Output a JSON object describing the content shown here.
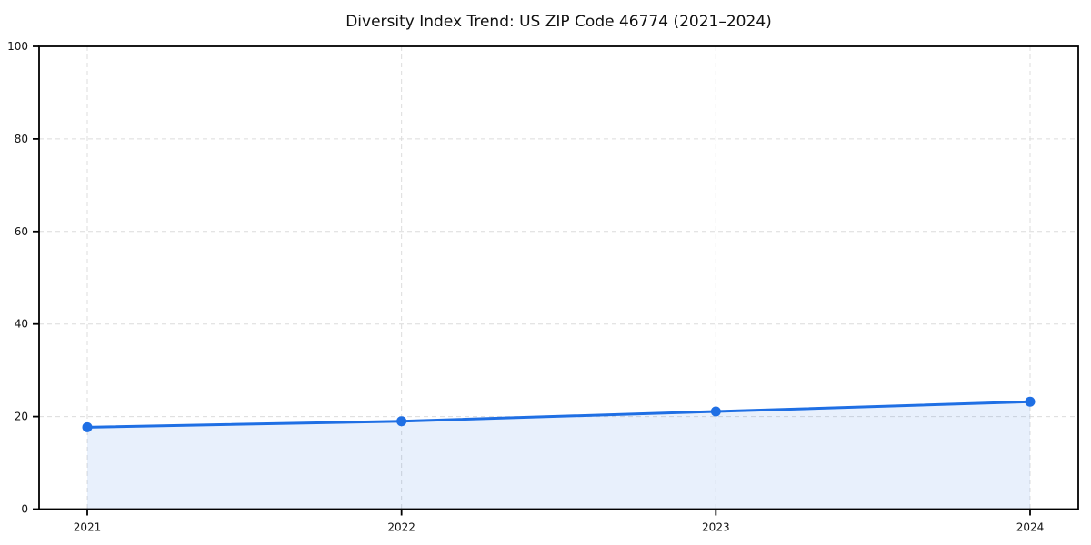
{
  "chart_data": {
    "type": "line",
    "title": "Diversity Index Trend: US ZIP Code 46774 (2021–2024)",
    "categories": [
      "2021",
      "2022",
      "2023",
      "2024"
    ],
    "x": [
      2021,
      2022,
      2023,
      2024
    ],
    "series": [
      {
        "name": "Diversity Index",
        "values": [
          17.7,
          19.0,
          21.1,
          23.2
        ]
      }
    ],
    "values": [
      17.7,
      19.0,
      21.1,
      23.2
    ],
    "xlabel": "",
    "ylabel": "",
    "ylim": [
      0,
      100
    ],
    "yticks": [
      0,
      20,
      40,
      60,
      80,
      100
    ],
    "grid": true,
    "grid_style": "dashed",
    "grid_x": true,
    "grid_y": true,
    "legend": "none",
    "marker": "circle",
    "area_fill": true,
    "colors": {
      "line": "#1f6fe4",
      "marker": "#1f6fe4",
      "area_fill": "rgba(31,111,228,0.10)",
      "grid": "#dcdcdc",
      "axis": "#000000",
      "tick_label": "#111111",
      "title": "#111111",
      "background": "#ffffff"
    }
  }
}
